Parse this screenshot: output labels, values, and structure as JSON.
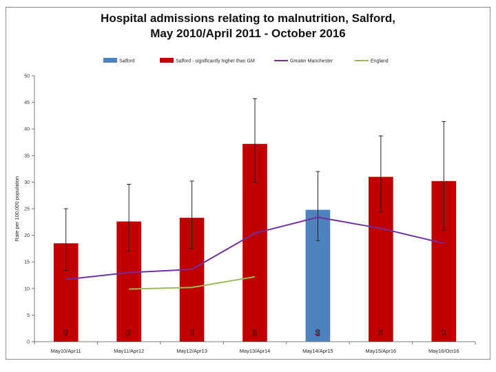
{
  "chart_data": {
    "type": "bar",
    "title_lines": [
      "Hospital admissions relating to malnutrition, Salford,",
      "May 2010/April 2011 - October 2016"
    ],
    "ylabel": "Rate per 100,000 population",
    "xlabel": "",
    "ylim": [
      0,
      50
    ],
    "yticks": [
      0,
      5,
      10,
      15,
      20,
      25,
      30,
      35,
      40,
      45,
      50
    ],
    "grid": false,
    "legend_position": "top",
    "categories": [
      "May10/Apr11",
      "May11/Apr12",
      "May12/Apr13",
      "May13/Apr14",
      "May14/Apr15",
      "May15/Apr16",
      "May16/Oct16"
    ],
    "legend": [
      {
        "name": "Salford",
        "kind": "bar",
        "color": "#4f81bd"
      },
      {
        "name": "Salford - significantly higher than GM",
        "kind": "bar",
        "color": "#c00000"
      },
      {
        "name": "Greater Manchester",
        "kind": "line",
        "color": "#7030a0"
      },
      {
        "name": "England",
        "kind": "line",
        "color": "#9bbb59"
      }
    ],
    "bars": {
      "values": [
        18.5,
        22.6,
        23.3,
        37.2,
        24.8,
        31.0,
        30.2
      ],
      "error_low": [
        13.4,
        17.0,
        17.5,
        30.0,
        19.0,
        24.4,
        21.0
      ],
      "error_high": [
        25.0,
        29.6,
        30.2,
        45.7,
        32.0,
        38.7,
        41.4
      ],
      "labels": [
        "43",
        "53",
        "55",
        "89",
        "60",
        "76",
        "37"
      ],
      "series_index": [
        1,
        1,
        1,
        1,
        0,
        1,
        1
      ]
    },
    "series": [
      {
        "name": "Greater Manchester",
        "type": "line",
        "color": "#7030a0",
        "values": [
          11.7,
          13.0,
          13.6,
          20.4,
          23.4,
          21.3,
          18.5
        ]
      },
      {
        "name": "England",
        "type": "line",
        "color": "#9bbb59",
        "values": [
          null,
          9.9,
          10.2,
          12.2,
          null,
          null,
          null
        ]
      }
    ]
  }
}
